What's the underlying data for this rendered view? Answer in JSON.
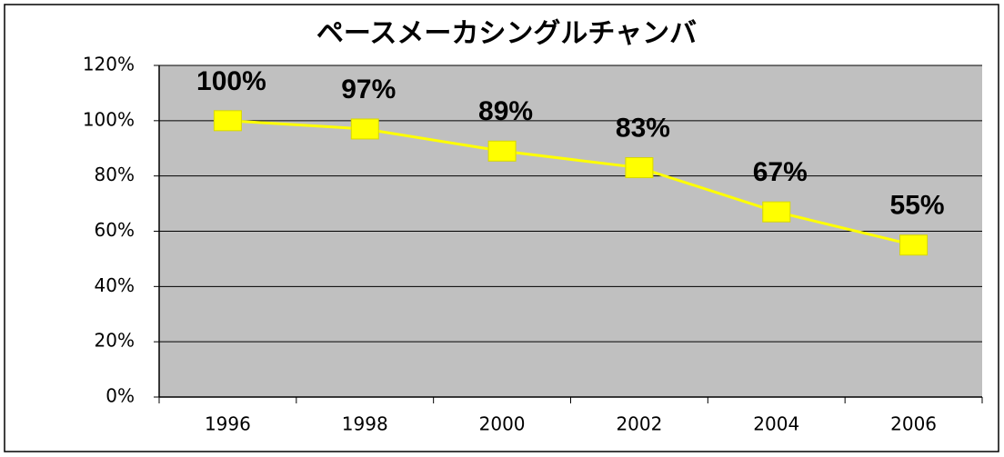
{
  "chart_data": {
    "type": "line",
    "title": "ペースメーカシングルチャンバ",
    "categories": [
      "1996",
      "1998",
      "2000",
      "2002",
      "2004",
      "2006"
    ],
    "values": [
      100,
      97,
      89,
      83,
      67,
      55
    ],
    "value_labels": [
      "100%",
      "97%",
      "89%",
      "83%",
      "67%",
      "55%"
    ],
    "color": "#ffff00",
    "ylim": [
      0,
      120
    ],
    "yticks": [
      {
        "value": 0,
        "label": "0%"
      },
      {
        "value": 20,
        "label": "20%"
      },
      {
        "value": 40,
        "label": "40%"
      },
      {
        "value": 60,
        "label": "60%"
      },
      {
        "value": 80,
        "label": "80%"
      },
      {
        "value": 100,
        "label": "100%"
      },
      {
        "value": 120,
        "label": "120%"
      }
    ],
    "grid": true
  }
}
